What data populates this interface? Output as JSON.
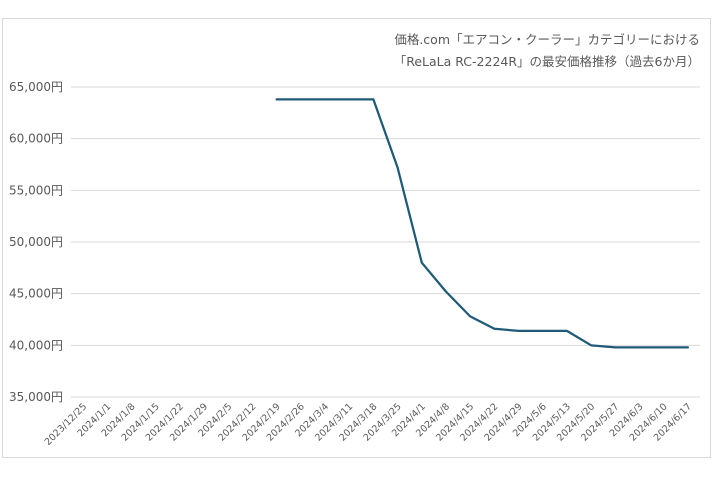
{
  "chart_data": {
    "type": "line",
    "title_lines": [
      "価格.com「エアコン・クーラー」カテゴリーにおける",
      "「ReLaLa RC-2224R」の最安価格推移（過去6か月）"
    ],
    "xlabel": "",
    "ylabel": "",
    "ylim": [
      35000,
      65000
    ],
    "yticks": [
      35000,
      40000,
      45000,
      50000,
      55000,
      60000,
      65000
    ],
    "ytick_labels": [
      "35,000円",
      "40,000円",
      "45,000円",
      "50,000円",
      "55,000円",
      "60,000円",
      "65,000円"
    ],
    "grid": true,
    "legend": "none",
    "categories": [
      "2023/12/25",
      "2024/1/1",
      "2024/1/8",
      "2024/1/15",
      "2024/1/22",
      "2024/1/29",
      "2024/2/5",
      "2024/2/12",
      "2024/2/19",
      "2024/2/26",
      "2024/3/4",
      "2024/3/11",
      "2024/3/18",
      "2024/3/25",
      "2024/4/1",
      "2024/4/8",
      "2024/4/15",
      "2024/4/22",
      "2024/4/29",
      "2024/5/6",
      "2024/5/13",
      "2024/5/20",
      "2024/5/27",
      "2024/6/3",
      "2024/6/10",
      "2024/6/17"
    ],
    "series": [
      {
        "color": "#1f5a78",
        "values": [
          null,
          null,
          null,
          null,
          null,
          null,
          null,
          null,
          63800,
          63800,
          63800,
          63800,
          63800,
          57200,
          48000,
          45200,
          42800,
          41600,
          41400,
          41400,
          41400,
          40000,
          39800,
          39800,
          39800,
          39800
        ]
      }
    ]
  }
}
